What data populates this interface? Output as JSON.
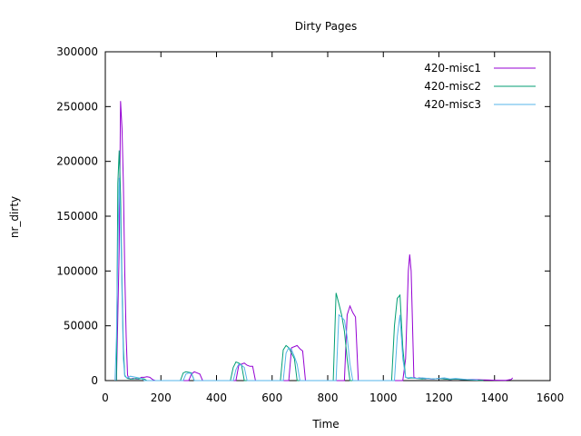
{
  "chart_data": {
    "type": "line",
    "title": "Dirty Pages",
    "xlabel": "Time",
    "ylabel": "nr_dirty",
    "xlim": [
      0,
      1600
    ],
    "ylim": [
      0,
      300000
    ],
    "xticks": [
      0,
      200,
      400,
      600,
      800,
      1000,
      1200,
      1400,
      1600
    ],
    "yticks": [
      0,
      50000,
      100000,
      150000,
      200000,
      250000,
      300000
    ],
    "grid": false,
    "legend": "top-right",
    "series": [
      {
        "name": "420-misc1",
        "color": "#9400d3",
        "x": [
          40,
          50,
          55,
          60,
          65,
          70,
          75,
          80,
          85,
          90,
          100,
          110,
          120,
          130,
          140,
          150,
          160,
          170,
          180,
          300,
          310,
          320,
          330,
          340,
          350,
          470,
          480,
          490,
          500,
          510,
          520,
          530,
          540,
          660,
          670,
          680,
          690,
          700,
          710,
          720,
          730,
          860,
          870,
          880,
          890,
          900,
          910,
          920,
          1070,
          1080,
          1090,
          1095,
          1100,
          1110,
          1120,
          1130,
          1140,
          1150,
          1160,
          1170,
          1180,
          1200,
          1220,
          1240,
          1260,
          1280,
          1300,
          1320,
          1340,
          1360,
          1380,
          1400,
          1440,
          1460,
          1465
        ],
        "y": [
          0,
          120000,
          255000,
          230000,
          180000,
          100000,
          40000,
          5000,
          2000,
          1500,
          2000,
          1500,
          1500,
          3000,
          3000,
          3500,
          3000,
          1000,
          0,
          0,
          6000,
          8000,
          7000,
          6000,
          0,
          0,
          14000,
          15000,
          16000,
          14000,
          13000,
          13000,
          0,
          0,
          30000,
          31000,
          32000,
          29000,
          27000,
          0,
          0,
          0,
          60000,
          68000,
          62000,
          58000,
          0,
          0,
          0,
          20000,
          100000,
          115000,
          100000,
          3000,
          2000,
          2500,
          2000,
          1500,
          2000,
          1500,
          1500,
          2000,
          1500,
          1000,
          1500,
          1000,
          800,
          1000,
          800,
          700,
          500,
          300,
          200,
          1000,
          2500
        ]
      },
      {
        "name": "420-misc2",
        "color": "#009e73",
        "x": [
          40,
          45,
          50,
          55,
          60,
          65,
          70,
          75,
          80,
          90,
          100,
          110,
          120,
          130,
          140,
          150,
          270,
          280,
          290,
          300,
          310,
          320,
          450,
          460,
          470,
          480,
          490,
          500,
          630,
          640,
          650,
          660,
          670,
          680,
          690,
          820,
          830,
          840,
          850,
          860,
          870,
          880,
          1030,
          1040,
          1050,
          1060,
          1070,
          1080,
          1090,
          1100,
          1120,
          1140,
          1160,
          1180,
          1200,
          1220,
          1240,
          1260,
          1280,
          1300,
          1320,
          1340,
          1360
        ],
        "y": [
          0,
          180000,
          210000,
          170000,
          90000,
          30000,
          5000,
          3000,
          2000,
          1500,
          1500,
          2000,
          1500,
          2000,
          1500,
          0,
          0,
          7000,
          8000,
          7500,
          7000,
          0,
          0,
          12000,
          17000,
          16000,
          14000,
          0,
          0,
          28000,
          32000,
          30000,
          25000,
          20000,
          0,
          0,
          80000,
          70000,
          60000,
          45000,
          20000,
          0,
          0,
          50000,
          75000,
          78000,
          30000,
          3000,
          2000,
          2500,
          2000,
          1500,
          2000,
          1500,
          2000,
          1500,
          1000,
          1500,
          1000,
          800,
          500,
          300,
          200
        ]
      },
      {
        "name": "420-misc3",
        "color": "#56b4e9",
        "x": [
          35,
          40,
          45,
          50,
          55,
          60,
          65,
          70,
          75,
          80,
          90,
          100,
          110,
          120,
          130,
          140,
          280,
          290,
          300,
          310,
          320,
          460,
          470,
          480,
          490,
          500,
          510,
          640,
          650,
          660,
          670,
          680,
          690,
          700,
          830,
          840,
          850,
          860,
          870,
          880,
          890,
          1040,
          1050,
          1060,
          1070,
          1080,
          1090,
          1100,
          1120,
          1140,
          1160,
          1180,
          1200,
          1220,
          1240,
          1260,
          1280,
          1300,
          1320,
          1340
        ],
        "y": [
          0,
          40000,
          120000,
          185000,
          150000,
          80000,
          20000,
          4000,
          3000,
          2500,
          4000,
          3500,
          3000,
          2500,
          2000,
          0,
          0,
          6000,
          7000,
          6500,
          0,
          0,
          10000,
          15000,
          14000,
          12000,
          0,
          0,
          25000,
          30000,
          28000,
          22000,
          15000,
          0,
          0,
          60000,
          58000,
          55000,
          40000,
          15000,
          0,
          0,
          40000,
          60000,
          20000,
          3000,
          2500,
          3000,
          2000,
          2500,
          2000,
          1500,
          2000,
          2500,
          1500,
          2000,
          1500,
          1000,
          800,
          500
        ]
      }
    ]
  }
}
